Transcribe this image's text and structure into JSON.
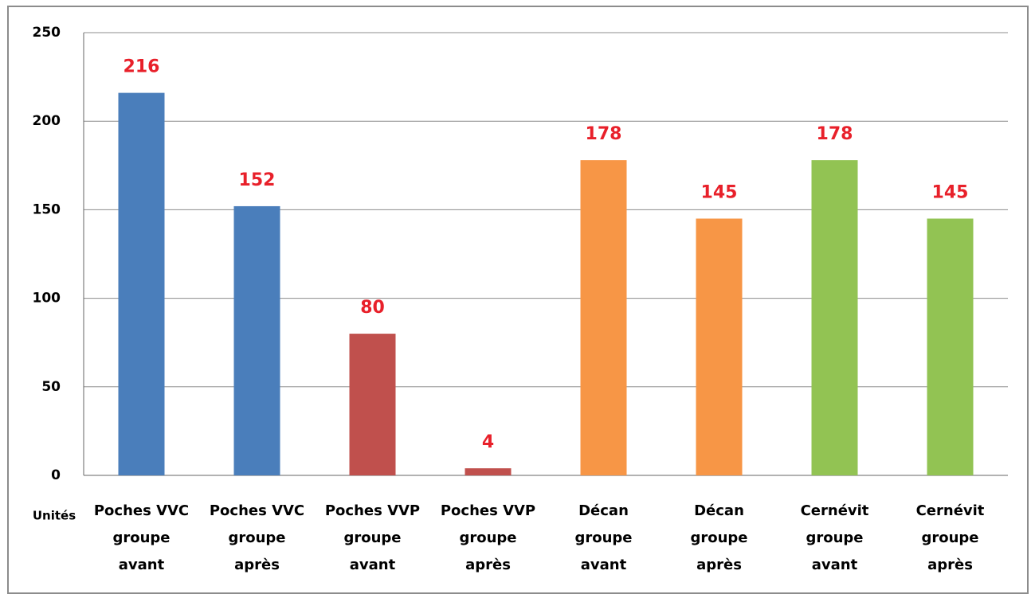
{
  "chart_data": {
    "type": "bar",
    "y_label": "Unités",
    "categories": [
      [
        "Poches VVC",
        "groupe",
        "avant"
      ],
      [
        "Poches VVC",
        "groupe",
        "après"
      ],
      [
        "Poches VVP",
        "groupe",
        "avant"
      ],
      [
        "Poches VVP",
        "groupe",
        "après"
      ],
      [
        "Décan",
        "groupe",
        "avant"
      ],
      [
        "Décan",
        "groupe",
        "après"
      ],
      [
        "Cernévit",
        "groupe",
        "avant"
      ],
      [
        "Cernévit",
        "groupe",
        "après"
      ]
    ],
    "values": [
      216,
      152,
      80,
      4,
      178,
      145,
      178,
      145
    ],
    "colors": [
      "#4a7ebb",
      "#4a7ebb",
      "#c0504d",
      "#c0504d",
      "#f79646",
      "#f79646",
      "#92c353",
      "#92c353"
    ],
    "value_label_color": "#e8202a",
    "ylim": [
      0,
      250
    ],
    "yticks": [
      0,
      50,
      100,
      150,
      200,
      250
    ],
    "grid": true
  }
}
